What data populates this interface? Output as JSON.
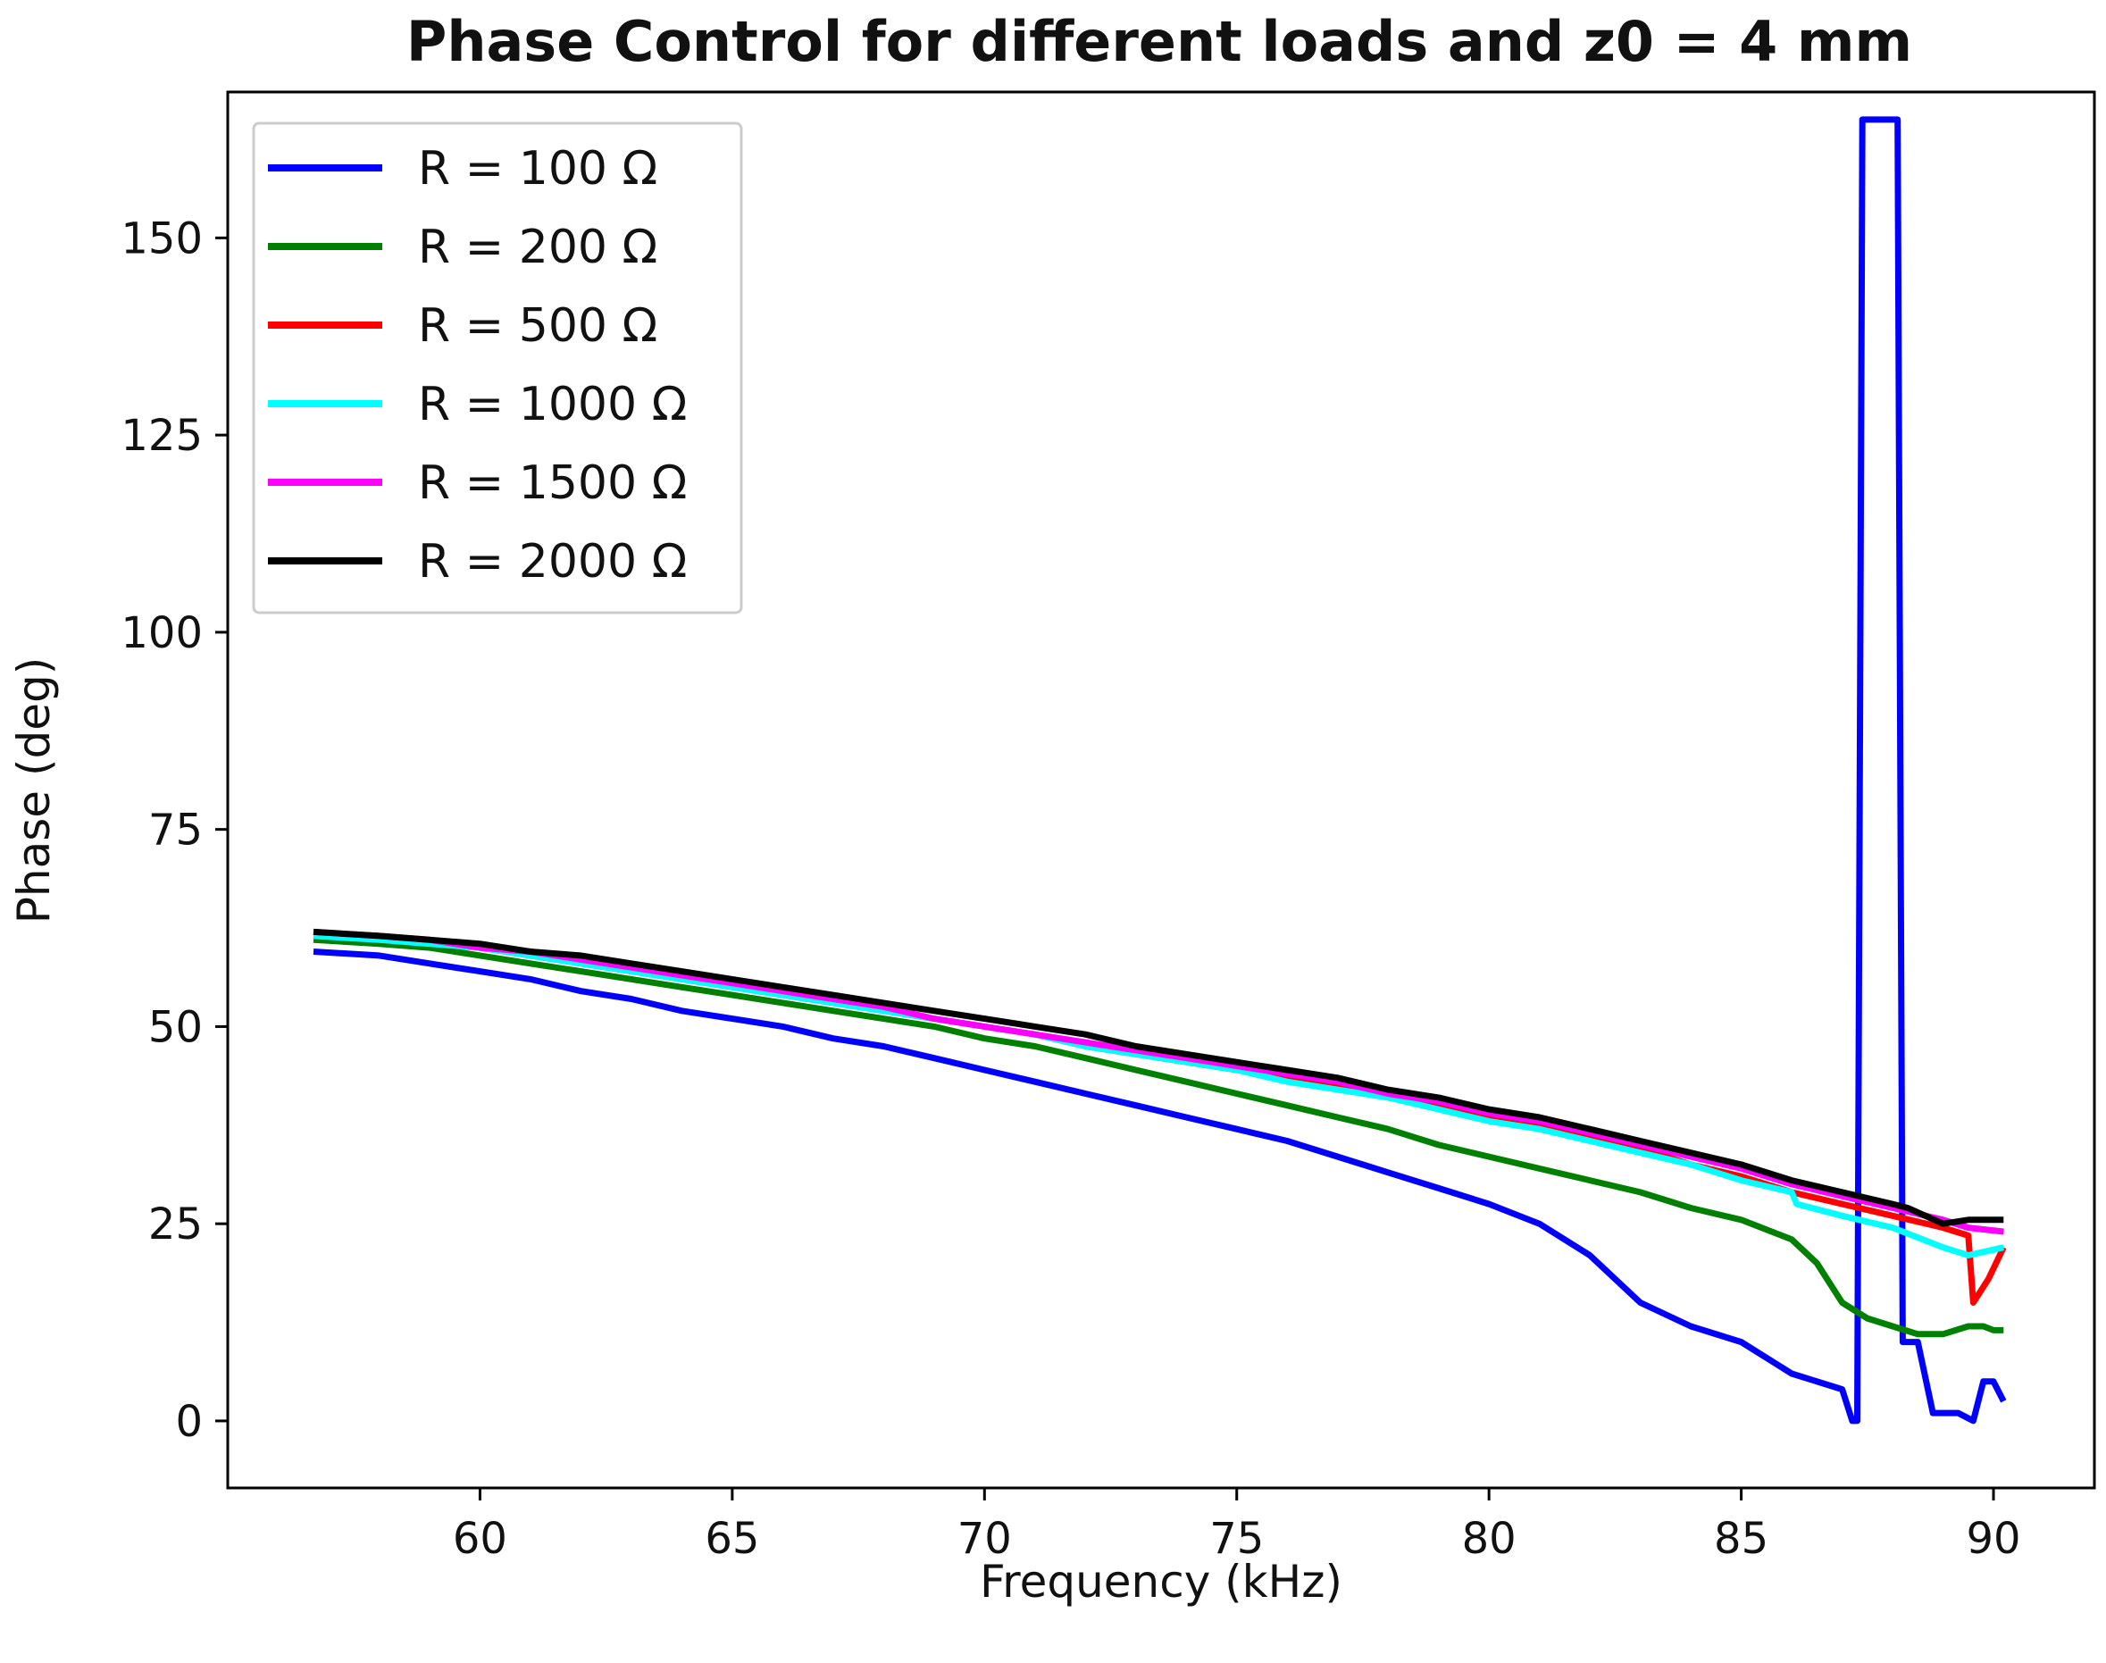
{
  "chart_data": {
    "type": "line",
    "title": "Phase Control for different loads and z0 = 4 mm",
    "xlabel": "Frequency (kHz)",
    "ylabel": "Phase (deg)",
    "xlim": [
      55.0,
      92.0
    ],
    "ylim": [
      -8.5,
      168.5
    ],
    "xticks": [
      60,
      65,
      70,
      75,
      80,
      85,
      90
    ],
    "yticks": [
      0,
      25,
      50,
      75,
      100,
      125,
      150
    ],
    "grid": false,
    "legend_position": "top-left",
    "series": [
      {
        "name": "R = 100 Ω",
        "color": "#0000ff",
        "x": [
          56.7,
          58,
          59,
          60,
          61,
          62,
          63,
          64,
          65,
          66,
          67,
          68,
          69,
          70,
          71,
          72,
          73,
          74,
          75,
          76,
          77,
          78,
          79,
          80,
          81,
          82,
          83,
          84,
          85,
          86,
          87,
          87.2,
          87.3,
          87.4,
          87.5,
          88.0,
          88.1,
          88.2,
          88.3,
          88.5,
          88.8,
          89.0,
          89.3,
          89.6,
          89.8,
          90.0,
          90.2
        ],
        "y": [
          59.5,
          59,
          58,
          57,
          56,
          54.5,
          53.5,
          52,
          51,
          50,
          48.5,
          47.5,
          46,
          44.5,
          43,
          41.5,
          40,
          38.5,
          37,
          35.5,
          33.5,
          31.5,
          29.5,
          27.5,
          25,
          21,
          15,
          12,
          10,
          6,
          4,
          0,
          0,
          165,
          165,
          165,
          165,
          10,
          10,
          10,
          1,
          1,
          1,
          0,
          5,
          5,
          2.5
        ]
      },
      {
        "name": "R = 200 Ω",
        "color": "#008000",
        "x": [
          56.7,
          58,
          59,
          60,
          61,
          62,
          63,
          64,
          65,
          66,
          67,
          68,
          69,
          70,
          71,
          72,
          73,
          74,
          75,
          76,
          77,
          78,
          79,
          80,
          81,
          82,
          83,
          84,
          85,
          86,
          86.5,
          87,
          87.5,
          88,
          88.5,
          89,
          89.5,
          89.8,
          90.0,
          90.2
        ],
        "y": [
          61,
          60.5,
          60,
          59,
          58,
          57,
          56,
          55,
          54,
          53,
          52,
          51,
          50,
          48.5,
          47.5,
          46,
          44.5,
          43,
          41.5,
          40,
          38.5,
          37,
          35,
          33.5,
          32,
          30.5,
          29,
          27,
          25.5,
          23,
          20,
          15,
          13,
          12,
          11,
          11,
          12,
          12,
          11.5,
          11.5
        ]
      },
      {
        "name": "R = 500 Ω",
        "color": "#ff0000",
        "x": [
          56.7,
          58,
          59,
          60,
          61,
          62,
          63,
          64,
          65,
          66,
          67,
          68,
          69,
          70,
          71,
          72,
          73,
          74,
          75,
          76,
          77,
          78,
          79,
          80,
          81,
          82,
          83,
          84,
          85,
          86,
          87,
          88,
          89,
          89.5,
          89.6,
          89.9,
          90.2
        ],
        "y": [
          61.5,
          61,
          60.5,
          60,
          59,
          58,
          57,
          56,
          55,
          54,
          53,
          52,
          51,
          50,
          49,
          47.5,
          46.5,
          45.5,
          44.5,
          43.5,
          42.5,
          41,
          40,
          38.5,
          37.5,
          36,
          34.5,
          32.5,
          31,
          29,
          27.5,
          26,
          24.5,
          23.5,
          15,
          18,
          22
        ]
      },
      {
        "name": "R = 1000 Ω",
        "color": "#00ffff",
        "x": [
          56.7,
          58,
          59,
          60,
          61,
          62,
          63,
          64,
          65,
          66,
          67,
          68,
          69,
          70,
          71,
          72,
          73,
          74,
          75,
          76,
          77,
          78,
          79,
          80,
          81,
          82,
          83,
          84,
          85,
          86,
          86.1,
          87,
          88,
          89,
          89.5,
          90.2
        ],
        "y": [
          61.5,
          61,
          60.5,
          60,
          59,
          58,
          57,
          56,
          55,
          54,
          53,
          52,
          51,
          50,
          49,
          47.5,
          46.5,
          45.5,
          44.5,
          43,
          42,
          41,
          39.5,
          38,
          37,
          35.5,
          34,
          32.5,
          30.5,
          29,
          27.5,
          26,
          24.5,
          22,
          21,
          22
        ]
      },
      {
        "name": "R = 1500 Ω",
        "color": "#ff00ff",
        "x": [
          56.7,
          58,
          59,
          60,
          61,
          62,
          63,
          64,
          65,
          66,
          67,
          68,
          69,
          70,
          71,
          72,
          73,
          74,
          75,
          76,
          77,
          78,
          79,
          80,
          81,
          82,
          83,
          84,
          85,
          86,
          87,
          88,
          89,
          89.5,
          90.2
        ],
        "y": [
          62,
          61.5,
          61,
          60,
          59.5,
          58.5,
          57.5,
          56.5,
          55.5,
          54.5,
          53.5,
          52.5,
          51,
          50,
          49,
          48,
          47,
          46,
          45,
          44,
          43,
          41.5,
          40.5,
          39,
          38,
          36.5,
          35,
          33.5,
          32,
          30,
          28.5,
          27,
          25.5,
          24.5,
          24
        ]
      },
      {
        "name": "R = 2000 Ω",
        "color": "#000000",
        "x": [
          56.7,
          58,
          59,
          60,
          61,
          62,
          63,
          64,
          65,
          66,
          67,
          68,
          69,
          70,
          71,
          72,
          73,
          74,
          75,
          76,
          77,
          78,
          79,
          80,
          81,
          82,
          83,
          84,
          85,
          86,
          87,
          88,
          88.3,
          89,
          89.5,
          90.2
        ],
        "y": [
          62,
          61.5,
          61,
          60.5,
          59.5,
          59,
          58,
          57,
          56,
          55,
          54,
          53,
          52,
          51,
          50,
          49,
          47.5,
          46.5,
          45.5,
          44.5,
          43.5,
          42,
          41,
          39.5,
          38.5,
          37,
          35.5,
          34,
          32.5,
          30.5,
          29,
          27.5,
          27,
          25,
          25.5,
          25.5
        ]
      }
    ]
  }
}
